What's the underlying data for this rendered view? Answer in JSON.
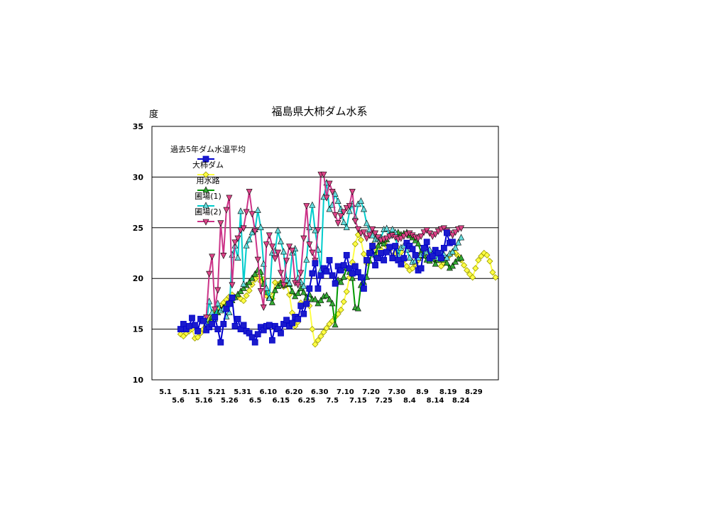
{
  "chart_data": {
    "type": "line",
    "title": "福島県大柿ダム水系",
    "ylabel": "度",
    "xlabel": "",
    "ylim": [
      10,
      35
    ],
    "yticks": [
      10,
      15,
      20,
      25,
      30,
      35
    ],
    "grid": true,
    "legend_position": "top-left",
    "x_tick_labels_row1": [
      "5.1",
      "5.11",
      "5.21",
      "5.31",
      "6.10",
      "6.20",
      "6.30",
      "7.10",
      "7.20",
      "7.30",
      "8.9",
      "8.19",
      "8.29"
    ],
    "x_tick_labels_row2": [
      "5.6",
      "5.16",
      "5.26",
      "6.5",
      "6.15",
      "6.25",
      "7.5",
      "7.15",
      "7.25",
      "8.4",
      "8.14",
      "8.24"
    ],
    "series": [
      {
        "name": "過去5年ダム水温平均",
        "color": "#0000cc",
        "fill": "#1a1acc",
        "marker": "square",
        "x": [
          10,
          11,
          12,
          13,
          14,
          15,
          16,
          17,
          18,
          19,
          20,
          21,
          22,
          23,
          24,
          25,
          26,
          27,
          28,
          29,
          30,
          31,
          32,
          33,
          34,
          35,
          36,
          37,
          38,
          39,
          40,
          41,
          42,
          43,
          44,
          45,
          46,
          47,
          48,
          49,
          50,
          51,
          52,
          53,
          54,
          55,
          56,
          57,
          58,
          59,
          60,
          61,
          62,
          63,
          64,
          65,
          66,
          67,
          68,
          69,
          70,
          71,
          72,
          73,
          74,
          75,
          76,
          77,
          78,
          79,
          80,
          81,
          82,
          83,
          84,
          85,
          86,
          87,
          88,
          89,
          90,
          91,
          92,
          93,
          94,
          95,
          96,
          97,
          98,
          99,
          100,
          101,
          102,
          103,
          104,
          105
        ],
        "y": [
          15.0,
          15.5,
          15.0,
          15.3,
          16.1,
          15.4,
          14.8,
          16.0,
          15.8,
          14.9,
          15.2,
          15.5,
          16.2,
          15.0,
          13.7,
          15.5,
          17.0,
          17.5,
          18.1,
          15.3,
          16.0,
          15.0,
          15.4,
          14.8,
          14.6,
          14.2,
          13.7,
          14.5,
          15.2,
          14.9,
          15.3,
          15.4,
          13.9,
          15.3,
          15.0,
          14.6,
          15.5,
          15.9,
          15.3,
          15.6,
          16.2,
          16.0,
          17.3,
          16.5,
          17.5,
          19.0,
          20.5,
          21.5,
          19.0,
          20.3,
          21.0,
          20.7,
          21.8,
          20.3,
          19.5,
          21.2,
          20.8,
          21.3,
          22.3,
          21.0,
          20.5,
          21.2,
          20.6,
          20.1,
          19.0,
          21.8,
          22.5,
          23.2,
          21.3,
          22.0,
          22.5,
          21.8,
          22.6,
          23.1,
          22.0,
          23.2,
          21.8,
          21.4,
          22.0,
          23.5,
          23.2,
          22.9,
          22.3,
          20.8,
          21.0,
          23.0,
          23.6,
          22.0,
          22.2,
          22.8,
          22.5,
          22.0,
          23.0,
          24.5,
          23.5,
          23.6
        ],
        "note": ""
      },
      {
        "name": "大柿ダム",
        "color": "#ffff44",
        "fill": "#ffff44",
        "marker": "diamond",
        "x": [
          10,
          11,
          12,
          13,
          14,
          15,
          16,
          17,
          18,
          19,
          20,
          21,
          22,
          23,
          24,
          25,
          26,
          27,
          28,
          29,
          30,
          31,
          32,
          33,
          34,
          35,
          36,
          37,
          38,
          39,
          40,
          41,
          42,
          43,
          44,
          45,
          46,
          47,
          48,
          49,
          50,
          51,
          52,
          53,
          54,
          55,
          56,
          57,
          58,
          59,
          60,
          61,
          62,
          63,
          64,
          65,
          66,
          67,
          68,
          69,
          70,
          71,
          72,
          73,
          74,
          75,
          76,
          77,
          78,
          79,
          80,
          81,
          82,
          83,
          84,
          85,
          86,
          87,
          88,
          89,
          90,
          91,
          92,
          93,
          94,
          95,
          96,
          97,
          98,
          99,
          100,
          101,
          102,
          103,
          104,
          105,
          106,
          107,
          108,
          109,
          110,
          111,
          112,
          113,
          114,
          115,
          116,
          117,
          118,
          119,
          120
        ],
        "y": [
          14.5,
          14.3,
          14.6,
          14.8,
          15.0,
          14.1,
          14.2,
          14.6,
          15.0,
          15.4,
          15.9,
          16.3,
          16.7,
          17.0,
          17.3,
          17.6,
          17.9,
          18.2,
          18.4,
          18.1,
          18.3,
          18.0,
          17.8,
          18.3,
          18.8,
          19.4,
          19.9,
          20.2,
          19.7,
          19.9,
          18.3,
          18.5,
          18.0,
          19.6,
          19.4,
          19.6,
          19.2,
          19.4,
          18.4,
          16.6,
          15.3,
          15.7,
          17.6,
          17.4,
          17.8,
          17.3,
          15.0,
          13.5,
          13.9,
          14.3,
          14.7,
          15.1,
          15.5,
          15.8,
          16.2,
          16.5,
          16.9,
          17.7,
          18.7,
          20.1,
          21.6,
          23.4,
          24.3,
          23.8,
          22.4,
          21.5,
          22.6,
          23.3,
          23.0,
          22.4,
          22.8,
          23.5,
          23.2,
          22.8,
          22.2,
          22.5,
          23.0,
          22.6,
          21.8,
          21.2,
          20.8,
          21.0,
          21.4,
          21.8,
          22.2,
          22.4,
          22.3,
          22.1,
          22.4,
          22.6,
          21.8,
          21.2,
          21.5,
          22.0,
          22.3,
          22.6,
          22.5,
          22.2,
          21.8,
          21.3,
          20.8,
          20.4,
          20.1,
          21.0,
          21.8,
          22.2,
          22.5,
          22.3,
          21.7,
          20.6,
          20.1
        ],
        "note": ""
      },
      {
        "name": "用水路",
        "color": "#009900",
        "fill": "#33aa33",
        "marker": "triangle-up",
        "x": [
          19,
          20,
          21,
          22,
          23,
          24,
          25,
          26,
          27,
          28,
          29,
          30,
          31,
          32,
          33,
          34,
          35,
          36,
          37,
          38,
          39,
          40,
          41,
          42,
          43,
          44,
          45,
          46,
          47,
          48,
          49,
          50,
          51,
          52,
          53,
          54,
          55,
          56,
          57,
          58,
          59,
          60,
          61,
          62,
          63,
          64,
          65,
          66,
          67,
          68,
          69,
          70,
          71,
          72,
          73,
          74,
          75,
          76,
          77,
          78,
          79,
          80,
          81,
          82,
          83,
          84,
          85,
          86,
          87,
          88,
          89,
          90,
          91,
          92,
          93,
          94,
          95,
          96,
          97,
          98,
          99,
          100,
          101,
          102,
          103,
          104,
          105,
          106,
          107,
          108
        ],
        "y": [
          15.0,
          15.6,
          16.2,
          16.4,
          16.6,
          16.9,
          17.1,
          17.4,
          17.6,
          17.8,
          18.1,
          18.4,
          18.7,
          19.0,
          19.3,
          19.6,
          20.0,
          20.4,
          20.8,
          20.6,
          19.4,
          18.6,
          18.1,
          17.6,
          18.8,
          19.2,
          19.5,
          19.3,
          19.7,
          19.4,
          18.7,
          18.2,
          18.5,
          19.0,
          18.6,
          18.1,
          18.4,
          17.9,
          17.9,
          17.5,
          17.8,
          18.2,
          18.3,
          17.9,
          17.5,
          15.4,
          19.8,
          19.6,
          20.1,
          21.0,
          20.6,
          20.0,
          17.1,
          17.0,
          19.3,
          19.6,
          20.1,
          21.7,
          22.6,
          22.3,
          23.2,
          23.6,
          23.4,
          23.8,
          24.2,
          24.6,
          24.4,
          24.5,
          24.3,
          24.4,
          24.5,
          24.2,
          24.0,
          23.7,
          23.4,
          22.6,
          22.2,
          21.8,
          21.7,
          21.9,
          21.4,
          21.8,
          22.0,
          21.8,
          21.5,
          21.0,
          21.2,
          21.6,
          21.9,
          22.0
        ],
        "note": ""
      },
      {
        "name": "圃場(1)",
        "color": "#00cccc",
        "fill": "#66dddd",
        "marker": "triangle-up",
        "x": [
          19,
          20,
          21,
          22,
          23,
          24,
          25,
          26,
          27,
          28,
          29,
          30,
          31,
          32,
          33,
          34,
          35,
          36,
          37,
          38,
          39,
          40,
          41,
          42,
          43,
          44,
          45,
          46,
          47,
          48,
          49,
          50,
          51,
          52,
          53,
          54,
          55,
          56,
          57,
          58,
          59,
          60,
          61,
          62,
          63,
          64,
          65,
          66,
          67,
          68,
          69,
          70,
          71,
          72,
          73,
          74,
          75,
          76,
          77,
          78,
          79,
          80,
          81,
          82,
          83,
          84,
          85,
          86,
          87,
          88,
          89,
          90,
          91,
          92,
          93,
          94,
          95,
          96,
          97,
          98,
          99,
          100,
          101,
          102,
          103,
          104,
          105,
          106,
          107,
          108
        ],
        "y": [
          15.5,
          17.7,
          16.6,
          16.0,
          17.5,
          16.8,
          17.0,
          16.2,
          16.6,
          22.3,
          23.2,
          22.0,
          26.6,
          19.4,
          23.2,
          23.8,
          24.5,
          24.8,
          26.7,
          25.0,
          21.4,
          19.0,
          18.0,
          22.5,
          22.7,
          24.7,
          23.6,
          22.6,
          19.8,
          19.5,
          22.5,
          22.9,
          20.0,
          19.6,
          19.2,
          21.8,
          25.0,
          27.2,
          24.7,
          22.8,
          20.8,
          28.0,
          29.4,
          26.8,
          27.2,
          28.3,
          27.6,
          26.8,
          25.5,
          25.0,
          26.6,
          27.3,
          26.0,
          27.3,
          27.6,
          26.8,
          25.4,
          24.8,
          24.2,
          23.8,
          23.9,
          24.0,
          24.8,
          24.9,
          24.2,
          24.8,
          24.5,
          22.2,
          23.0,
          23.2,
          22.8,
          22.0,
          21.6,
          21.7,
          22.0,
          22.3,
          22.5,
          22.6,
          22.8,
          22.4,
          22.2,
          22.0,
          22.5,
          22.3,
          22.0,
          22.4,
          22.6,
          23.0,
          23.5,
          24.0
        ],
        "note": ""
      },
      {
        "name": "圃場(2)",
        "color": "#cc3388",
        "fill": "#dd4488",
        "marker": "triangle-down",
        "x": [
          19,
          20,
          21,
          22,
          23,
          24,
          25,
          26,
          27,
          28,
          29,
          30,
          31,
          32,
          33,
          34,
          35,
          36,
          37,
          38,
          39,
          40,
          41,
          42,
          43,
          44,
          45,
          46,
          47,
          48,
          49,
          50,
          51,
          52,
          53,
          54,
          55,
          56,
          57,
          58,
          59,
          60,
          61,
          62,
          63,
          64,
          65,
          66,
          67,
          68,
          69,
          70,
          71,
          72,
          73,
          74,
          75,
          76,
          77,
          78,
          79,
          80,
          81,
          82,
          83,
          84,
          85,
          86,
          87,
          88,
          89,
          90,
          91,
          92,
          93,
          94,
          95,
          96,
          97,
          98,
          99,
          100,
          101,
          102,
          103,
          104,
          105,
          106,
          107,
          108
        ],
        "y": [
          16.2,
          20.5,
          22.2,
          17.0,
          18.9,
          25.5,
          22.3,
          26.8,
          28.0,
          19.4,
          23.6,
          24.0,
          24.8,
          25.0,
          26.6,
          28.6,
          26.4,
          24.7,
          21.9,
          18.8,
          17.2,
          23.4,
          24.3,
          23.2,
          22.0,
          22.6,
          20.6,
          19.4,
          21.8,
          23.2,
          22.8,
          19.6,
          19.4,
          20.6,
          24.0,
          27.2,
          23.4,
          22.6,
          21.8,
          24.8,
          30.3,
          30.3,
          28.0,
          29.4,
          28.6,
          26.3,
          25.5,
          26.2,
          26.6,
          27.0,
          27.2,
          28.6,
          25.7,
          24.9,
          24.5,
          24.6,
          24.0,
          24.3,
          24.9,
          24.5,
          24.1,
          23.8,
          23.9,
          24.0,
          24.2,
          24.3,
          24.1,
          23.9,
          24.0,
          24.2,
          24.4,
          24.5,
          24.3,
          24.1,
          24.0,
          24.2,
          24.6,
          24.8,
          24.5,
          24.2,
          24.4,
          24.7,
          24.9,
          25.0,
          24.7,
          24.5,
          24.3,
          24.6,
          24.9,
          25.0
        ],
        "note": ""
      }
    ]
  }
}
